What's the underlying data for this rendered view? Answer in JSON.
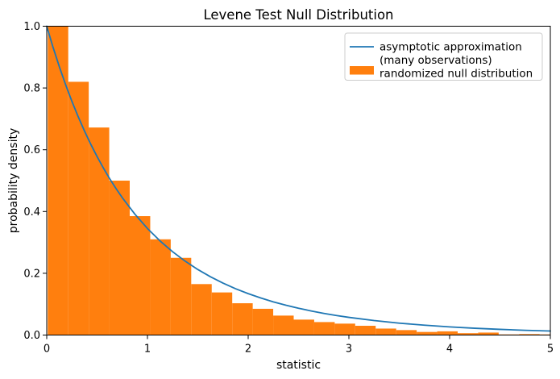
{
  "chart_data": {
    "type": "histogram_with_line",
    "title": "Levene Test Null Distribution",
    "xlabel": "statistic",
    "ylabel": "probability density",
    "xlim": [
      0,
      5
    ],
    "ylim": [
      0,
      1.0
    ],
    "xticks": [
      "0",
      "1",
      "2",
      "3",
      "4",
      "5"
    ],
    "yticks": [
      "0.0",
      "0.2",
      "0.4",
      "0.6",
      "0.8",
      "1.0"
    ],
    "grid": false,
    "legend_position": "upper right",
    "colors": {
      "line": "#1f77b4",
      "bars": "#ff7f0e",
      "frame": "#000000",
      "legend_border": "#cccccc"
    },
    "legend": {
      "lines": [
        "asymptotic approximation",
        "(many observations)",
        "randomized null distribution"
      ]
    },
    "series": [
      {
        "name": "asymptotic approximation (many observations)",
        "type": "line",
        "color": "#1f77b4",
        "x": [
          0,
          0.0625,
          0.125,
          0.1875,
          0.25,
          0.3125,
          0.375,
          0.4375,
          0.5,
          0.5625,
          0.625,
          0.6875,
          0.75,
          0.875,
          1.0,
          1.125,
          1.25,
          1.375,
          1.5,
          1.625,
          1.75,
          1.875,
          2.0,
          2.125,
          2.25,
          2.375,
          2.5,
          2.625,
          2.75,
          2.875,
          3.0,
          3.25,
          3.5,
          3.75,
          4.0,
          4.25,
          4.5,
          4.75,
          5.0
        ],
        "y": [
          1.0,
          0.9319,
          0.8689,
          0.8107,
          0.7568,
          0.7068,
          0.6605,
          0.6176,
          0.5778,
          0.5408,
          0.5064,
          0.4745,
          0.4448,
          0.3914,
          0.3451,
          0.3048,
          0.2697,
          0.2391,
          0.2123,
          0.1888,
          0.1682,
          0.15,
          0.1341,
          0.1201,
          0.1075,
          0.0965,
          0.0867,
          0.0781,
          0.0703,
          0.0634,
          0.0573,
          0.0469,
          0.0386,
          0.0319,
          0.0264,
          0.022,
          0.0184,
          0.0154,
          0.013
        ]
      },
      {
        "name": "randomized null distribution",
        "type": "histogram",
        "color": "#ff7f0e",
        "bin_start": 0.01,
        "bin_width": 0.2035,
        "densities": [
          1.0,
          0.82,
          0.672,
          0.5,
          0.385,
          0.31,
          0.25,
          0.165,
          0.138,
          0.103,
          0.085,
          0.063,
          0.05,
          0.042,
          0.037,
          0.03,
          0.021,
          0.016,
          0.01,
          0.012,
          0.006,
          0.008,
          0.002,
          0.003,
          0.002
        ]
      }
    ]
  }
}
